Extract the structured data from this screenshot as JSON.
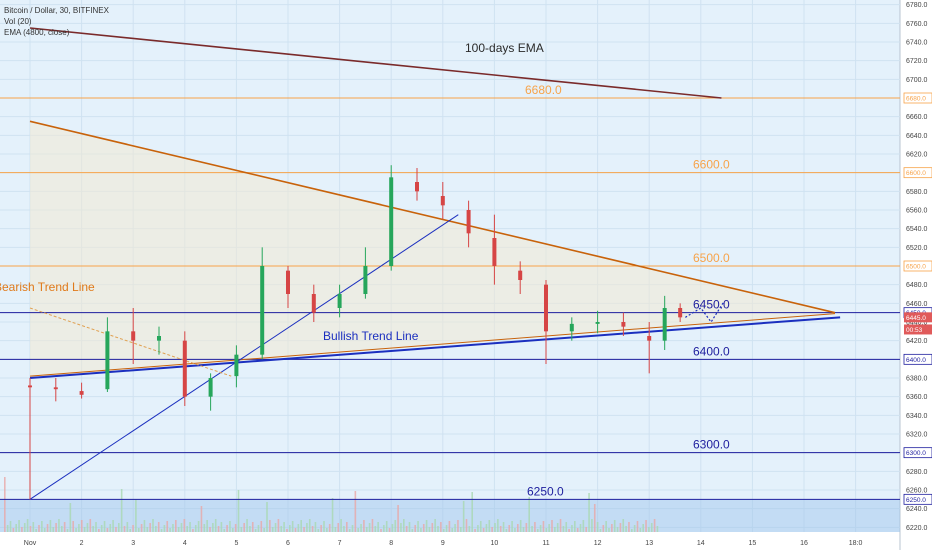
{
  "header": {
    "symbol_line": "Bitcoin / Dollar, 30, BITFINEX",
    "indicator_vol": "Vol (20)",
    "indicator_ema": "EMA (4800, close)"
  },
  "chart_data": {
    "type": "candlestick",
    "title": "Bitcoin / Dollar, 30, BITFINEX",
    "xlabel": "",
    "ylabel": "",
    "ylim": [
      6215,
      6785
    ],
    "x_ticks": [
      "Nov",
      "2",
      "3",
      "4",
      "5",
      "6",
      "7",
      "8",
      "9",
      "10",
      "11",
      "12",
      "13",
      "14",
      "15",
      "16",
      "18:0"
    ],
    "y_ticks": [
      "6780.0",
      "6760.0",
      "6740.0",
      "6720.0",
      "6700.0",
      "6680.0",
      "6660.0",
      "6640.0",
      "6620.0",
      "6600.0",
      "6580.0",
      "6560.0",
      "6540.0",
      "6520.0",
      "6500.0",
      "6480.0",
      "6460.0",
      "6440.0",
      "6420.0",
      "6400.0",
      "6380.0",
      "6360.0",
      "6340.0",
      "6320.0",
      "6300.0",
      "6280.0",
      "6260.0",
      "6240.0",
      "6220.0"
    ],
    "grid": true,
    "horizontal_levels": [
      {
        "value": 6680,
        "label": "6680.0",
        "color": "#f7a34a",
        "axis_tag": "6680.0"
      },
      {
        "value": 6600,
        "label": "6600.0",
        "color": "#f7a34a",
        "axis_tag": "6600.0"
      },
      {
        "value": 6500,
        "label": "6500.0",
        "color": "#f7a34a",
        "axis_tag": "6500.0"
      },
      {
        "value": 6450,
        "label": "6450.0",
        "color": "#1e1e9e",
        "axis_tag": "6450.0"
      },
      {
        "value": 6400,
        "label": "6400.0",
        "color": "#1e1e9e",
        "axis_tag": "6400.0"
      },
      {
        "value": 6300,
        "label": "6300.0",
        "color": "#1e1e9e",
        "axis_tag": "6300.0"
      },
      {
        "value": 6250,
        "label": "6250.0",
        "color": "#1e1e9e",
        "axis_tag": "6250.0"
      }
    ],
    "price_tags": [
      {
        "value": 6445,
        "label": "6445.0",
        "color": "#e05a5a"
      },
      {
        "value": 6432,
        "label": "00:53",
        "color": "#e05a5a"
      }
    ],
    "trend_lines": [
      {
        "name": "100-days EMA",
        "color": "#7a2a2a",
        "points": [
          [
            0.0,
            6755
          ],
          [
            13.4,
            6680
          ]
        ]
      },
      {
        "name": "Bearish Trend Line",
        "color": "#c8620a",
        "points": [
          [
            0.0,
            6655
          ],
          [
            15.6,
            6450
          ]
        ]
      },
      {
        "name": "Bullish Trend Line",
        "color": "#1b2fbf",
        "points": [
          [
            0.0,
            6380
          ],
          [
            15.7,
            6445
          ]
        ]
      },
      {
        "name": "support-trend-thin",
        "color": "#c8620a",
        "points": [
          [
            0.0,
            6382
          ],
          [
            15.6,
            6449
          ]
        ]
      },
      {
        "name": "steep-support",
        "color": "#1b2fbf",
        "points": [
          [
            0.0,
            6250
          ],
          [
            8.3,
            6555
          ]
        ]
      },
      {
        "name": "descending-minor",
        "color": "#e0a050",
        "points": [
          [
            0.0,
            6455
          ],
          [
            3.9,
            6382
          ]
        ]
      }
    ],
    "annotations": [
      "100-days EMA",
      "Bearish Trend Line",
      "Bullish Trend Line"
    ],
    "candles_approx": [
      {
        "day": 0.0,
        "open": 6372,
        "high": 6380,
        "low": 6250,
        "close": 6370
      },
      {
        "day": 0.5,
        "open": 6370,
        "high": 6380,
        "low": 6355,
        "close": 6368
      },
      {
        "day": 1.0,
        "open": 6366,
        "high": 6375,
        "low": 6358,
        "close": 6362
      },
      {
        "day": 1.5,
        "open": 6368,
        "high": 6445,
        "low": 6365,
        "close": 6430
      },
      {
        "day": 2.0,
        "open": 6430,
        "high": 6455,
        "low": 6395,
        "close": 6420
      },
      {
        "day": 2.5,
        "open": 6420,
        "high": 6435,
        "low": 6405,
        "close": 6425
      },
      {
        "day": 3.0,
        "open": 6420,
        "high": 6430,
        "low": 6350,
        "close": 6360
      },
      {
        "day": 3.5,
        "open": 6360,
        "high": 6385,
        "low": 6345,
        "close": 6380
      },
      {
        "day": 4.0,
        "open": 6382,
        "high": 6415,
        "low": 6370,
        "close": 6405
      },
      {
        "day": 4.5,
        "open": 6405,
        "high": 6520,
        "low": 6400,
        "close": 6500
      },
      {
        "day": 5.0,
        "open": 6495,
        "high": 6500,
        "low": 6455,
        "close": 6470
      },
      {
        "day": 5.5,
        "open": 6470,
        "high": 6480,
        "low": 6440,
        "close": 6450
      },
      {
        "day": 6.0,
        "open": 6455,
        "high": 6480,
        "low": 6445,
        "close": 6470
      },
      {
        "day": 6.5,
        "open": 6470,
        "high": 6520,
        "low": 6465,
        "close": 6500
      },
      {
        "day": 7.0,
        "open": 6500,
        "high": 6608,
        "low": 6495,
        "close": 6595
      },
      {
        "day": 7.5,
        "open": 6590,
        "high": 6605,
        "low": 6570,
        "close": 6580
      },
      {
        "day": 8.0,
        "open": 6575,
        "high": 6590,
        "low": 6550,
        "close": 6565
      },
      {
        "day": 8.5,
        "open": 6560,
        "high": 6570,
        "low": 6520,
        "close": 6535
      },
      {
        "day": 9.0,
        "open": 6530,
        "high": 6555,
        "low": 6480,
        "close": 6500
      },
      {
        "day": 9.5,
        "open": 6495,
        "high": 6505,
        "low": 6470,
        "close": 6485
      },
      {
        "day": 10.0,
        "open": 6480,
        "high": 6485,
        "low": 6395,
        "close": 6430
      },
      {
        "day": 10.5,
        "open": 6430,
        "high": 6445,
        "low": 6420,
        "close": 6438
      },
      {
        "day": 11.0,
        "open": 6438,
        "high": 6452,
        "low": 6428,
        "close": 6440
      },
      {
        "day": 11.5,
        "open": 6440,
        "high": 6450,
        "low": 6425,
        "close": 6435
      },
      {
        "day": 12.0,
        "open": 6425,
        "high": 6440,
        "low": 6385,
        "close": 6420
      },
      {
        "day": 12.3,
        "open": 6420,
        "high": 6468,
        "low": 6410,
        "close": 6455
      },
      {
        "day": 12.6,
        "open": 6455,
        "high": 6460,
        "low": 6440,
        "close": 6445
      }
    ],
    "projection": {
      "color": "#1b2fbf",
      "points": [
        [
          12.7,
          6445
        ],
        [
          13.0,
          6455
        ],
        [
          13.2,
          6440
        ],
        [
          13.45,
          6462
        ]
      ]
    }
  }
}
